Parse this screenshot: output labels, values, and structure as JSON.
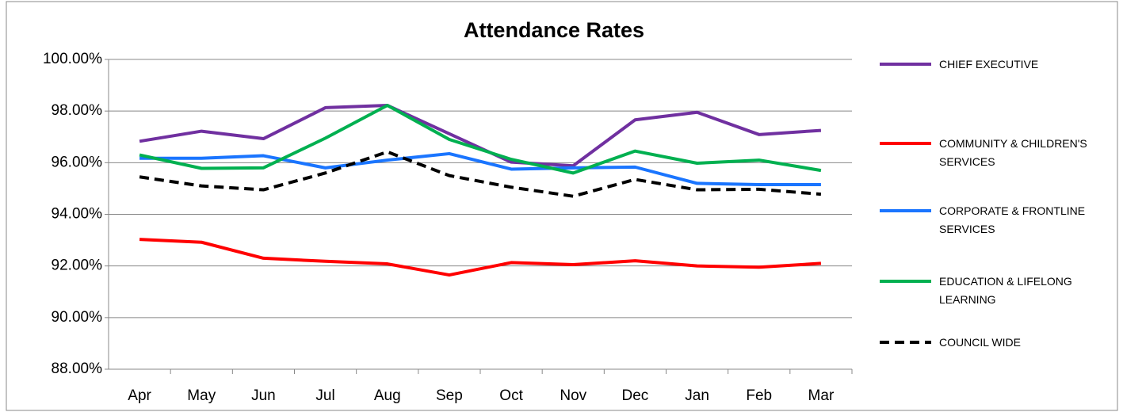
{
  "chart_data": {
    "type": "line",
    "title": "Attendance Rates",
    "categories": [
      "Apr",
      "May",
      "Jun",
      "Jul",
      "Aug",
      "Sep",
      "Oct",
      "Nov",
      "Dec",
      "Jan",
      "Feb",
      "Mar"
    ],
    "ylim": [
      88,
      100
    ],
    "yticks": [
      {
        "value": 88,
        "label": "88.00%"
      },
      {
        "value": 90,
        "label": "90.00%"
      },
      {
        "value": 92,
        "label": "92.00%"
      },
      {
        "value": 94,
        "label": "94.00%"
      },
      {
        "value": 96,
        "label": "96.00%"
      },
      {
        "value": 98,
        "label": "98.00%"
      },
      {
        "value": 100,
        "label": "100.00%"
      }
    ],
    "grid": true,
    "legend": "right",
    "series": [
      {
        "name": "CHIEF EXECUTIVE",
        "color": "#7030a0",
        "values": [
          96.83,
          97.22,
          96.93,
          98.13,
          98.22,
          97.12,
          96.02,
          95.88,
          97.66,
          97.95,
          97.09,
          97.25
        ]
      },
      {
        "name": "COMMUNITY & CHILDREN'S SERVICES",
        "color": "#ff0000",
        "values": [
          93.03,
          92.92,
          92.3,
          92.18,
          92.08,
          91.65,
          92.13,
          92.05,
          92.2,
          92.0,
          91.95,
          92.1
        ]
      },
      {
        "name": "CORPORATE & FRONTLINE SERVICES",
        "color": "#1a75ff",
        "values": [
          96.17,
          96.17,
          96.27,
          95.8,
          96.1,
          96.35,
          95.75,
          95.8,
          95.83,
          95.2,
          95.15,
          95.15
        ]
      },
      {
        "name": "EDUCATION & LIFELONG LEARNING",
        "color": "#00b050",
        "values": [
          96.3,
          95.78,
          95.8,
          96.95,
          98.22,
          96.9,
          96.13,
          95.6,
          96.45,
          95.98,
          96.1,
          95.7
        ]
      },
      {
        "name": "COUNCIL WIDE",
        "color": "#000000",
        "dashed": true,
        "values": [
          95.45,
          95.1,
          94.95,
          95.6,
          96.42,
          95.5,
          95.05,
          94.7,
          95.35,
          94.95,
          94.97,
          94.78
        ]
      }
    ]
  }
}
